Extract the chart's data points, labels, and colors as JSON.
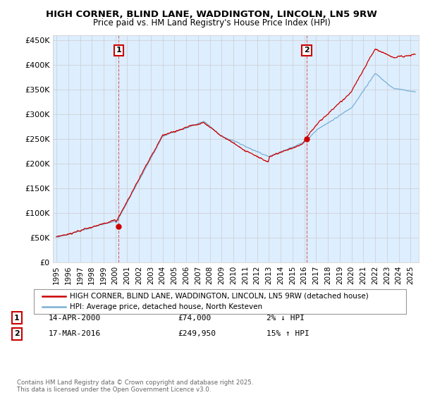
{
  "title1": "HIGH CORNER, BLIND LANE, WADDINGTON, LINCOLN, LN5 9RW",
  "title2": "Price paid vs. HM Land Registry's House Price Index (HPI)",
  "ylim": [
    0,
    460000
  ],
  "yticks": [
    0,
    50000,
    100000,
    150000,
    200000,
    250000,
    300000,
    350000,
    400000,
    450000
  ],
  "ytick_labels": [
    "£0",
    "£50K",
    "£100K",
    "£150K",
    "£200K",
    "£250K",
    "£300K",
    "£350K",
    "£400K",
    "£450K"
  ],
  "xlim_start": 1994.7,
  "xlim_end": 2025.7,
  "xticks": [
    1995,
    1996,
    1997,
    1998,
    1999,
    2000,
    2001,
    2002,
    2003,
    2004,
    2005,
    2006,
    2007,
    2008,
    2009,
    2010,
    2011,
    2012,
    2013,
    2014,
    2015,
    2016,
    2017,
    2018,
    2019,
    2020,
    2021,
    2022,
    2023,
    2024,
    2025
  ],
  "line1_color": "#cc0000",
  "line2_color": "#7ab0d4",
  "fill_color": "#ddeeff",
  "vline1_x": 2000.28,
  "vline2_x": 2016.21,
  "dot1_x": 2000.28,
  "dot1_y": 74000,
  "dot2_x": 2016.21,
  "dot2_y": 249950,
  "annotation1_label": "1",
  "annotation2_label": "2",
  "legend_line1": "HIGH CORNER, BLIND LANE, WADDINGTON, LINCOLN, LN5 9RW (detached house)",
  "legend_line2": "HPI: Average price, detached house, North Kesteven",
  "note1_label": "1",
  "note1_date": "14-APR-2000",
  "note1_price": "£74,000",
  "note1_hpi": "2% ↓ HPI",
  "note2_label": "2",
  "note2_date": "17-MAR-2016",
  "note2_price": "£249,950",
  "note2_hpi": "15% ↑ HPI",
  "footer": "Contains HM Land Registry data © Crown copyright and database right 2025.\nThis data is licensed under the Open Government Licence v3.0.",
  "background_color": "#ffffff",
  "grid_color": "#cccccc"
}
